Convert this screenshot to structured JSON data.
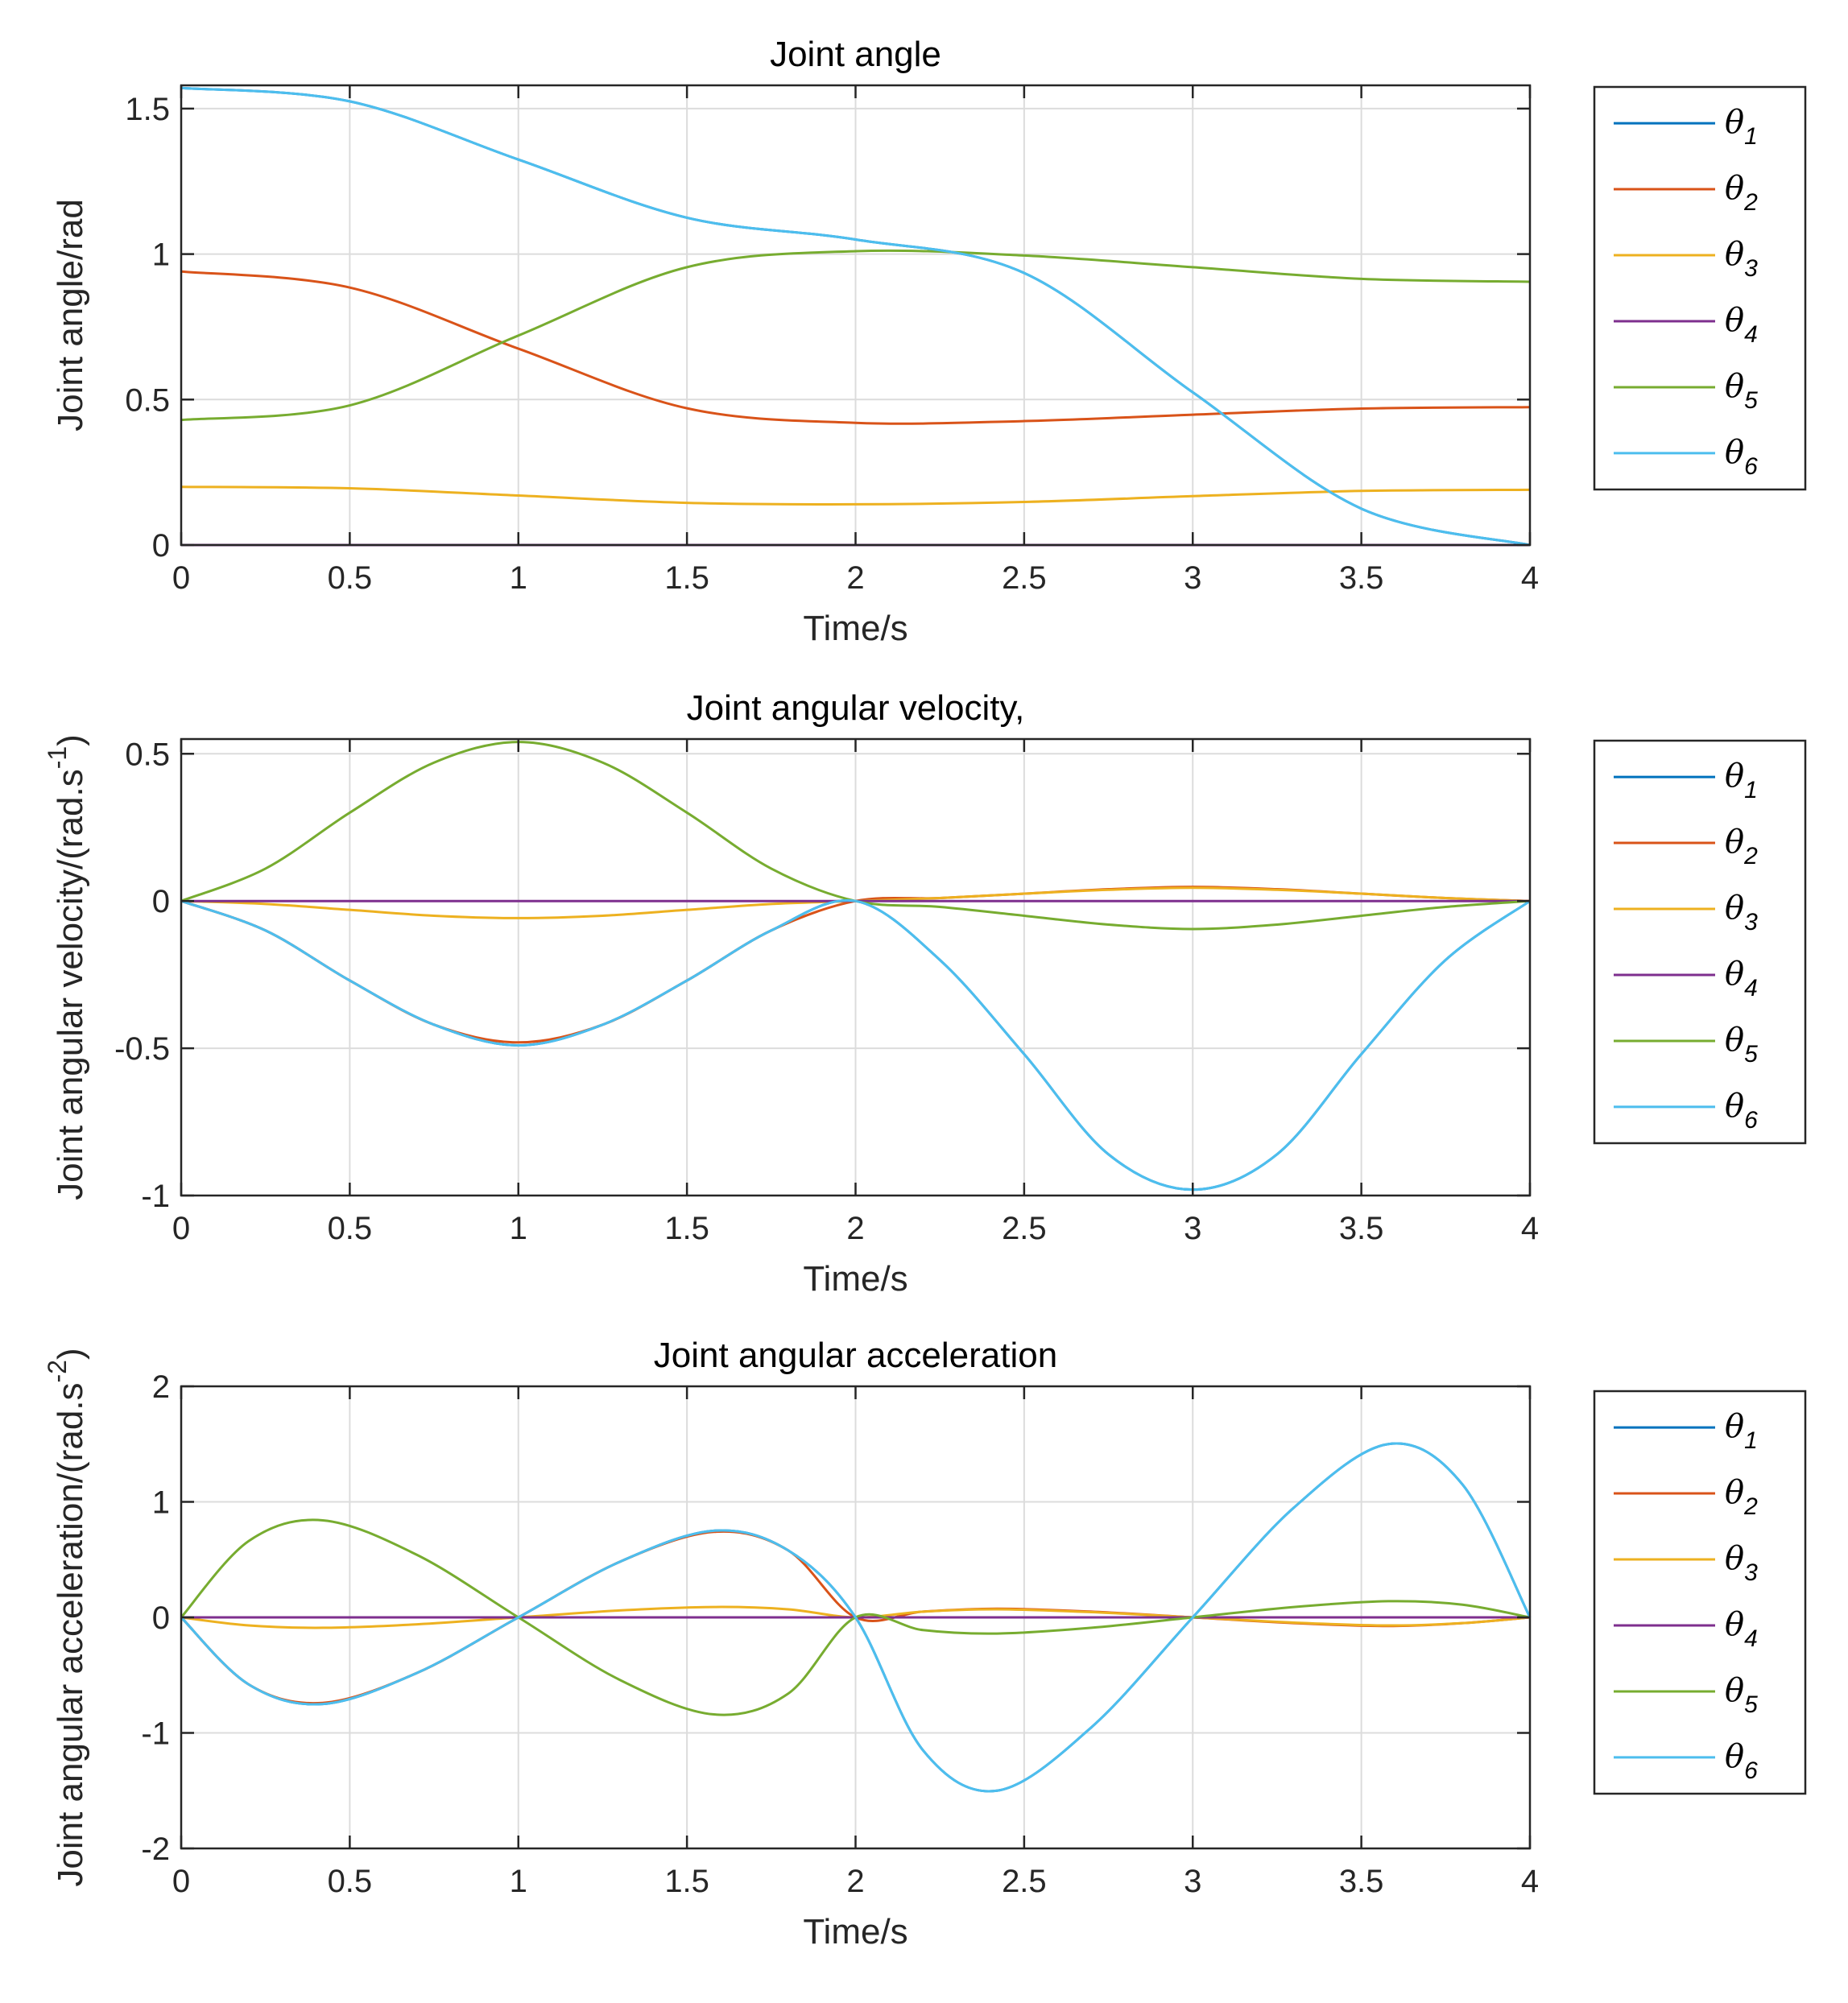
{
  "series_colors": [
    "#0072BD",
    "#D95319",
    "#EDB120",
    "#7E2F8E",
    "#77AC30",
    "#4DBEEE"
  ],
  "chart_data": [
    {
      "type": "line",
      "title": "Joint angle",
      "xlabel": "Time/s",
      "ylabel": "Joint angle/rad",
      "xlim": [
        0,
        4
      ],
      "ylim": [
        0,
        1.58
      ],
      "xticks": [
        0,
        0.5,
        1,
        1.5,
        2,
        2.5,
        3,
        3.5,
        4
      ],
      "xtick_labels": [
        "0",
        "0.5",
        "1",
        "1.5",
        "2",
        "2.5",
        "3",
        "3.5",
        "4"
      ],
      "yticks": [
        0,
        0.5,
        1,
        1.5
      ],
      "ytick_labels": [
        "0",
        "0.5",
        "1",
        "1.5"
      ],
      "grid": true,
      "legend_position": "outside-right",
      "series": [
        {
          "name": "θ1",
          "symbol": "θ",
          "sub": "1",
          "x": [
            0,
            0.5,
            1,
            1.5,
            2,
            2.5,
            3,
            3.5,
            4
          ],
          "values": [
            1.571,
            1.525,
            1.325,
            1.125,
            1.05,
            0.935,
            0.525,
            0.125,
            0.0
          ]
        },
        {
          "name": "θ2",
          "symbol": "θ",
          "sub": "2",
          "x": [
            0,
            0.5,
            1,
            1.5,
            2,
            2.5,
            3,
            3.5,
            4
          ],
          "values": [
            0.94,
            0.885,
            0.675,
            0.47,
            0.42,
            0.426,
            0.448,
            0.469,
            0.474
          ]
        },
        {
          "name": "θ3",
          "symbol": "θ",
          "sub": "3",
          "x": [
            0,
            0.5,
            1,
            1.5,
            2,
            2.5,
            3,
            3.5,
            4
          ],
          "values": [
            0.2,
            0.195,
            0.17,
            0.145,
            0.14,
            0.148,
            0.168,
            0.186,
            0.19
          ]
        },
        {
          "name": "θ4",
          "symbol": "θ",
          "sub": "4",
          "x": [
            0,
            0.5,
            1,
            1.5,
            2,
            2.5,
            3,
            3.5,
            4
          ],
          "values": [
            0,
            0,
            0,
            0,
            0,
            0,
            0,
            0,
            0
          ]
        },
        {
          "name": "θ5",
          "symbol": "θ",
          "sub": "5",
          "x": [
            0,
            0.5,
            1,
            1.5,
            2,
            2.5,
            3,
            3.5,
            4
          ],
          "values": [
            0.43,
            0.48,
            0.72,
            0.955,
            1.01,
            0.995,
            0.955,
            0.915,
            0.905
          ]
        },
        {
          "name": "θ6",
          "symbol": "θ",
          "sub": "6",
          "x": [
            0,
            0.5,
            1,
            1.5,
            2,
            2.5,
            3,
            3.5,
            4
          ],
          "values": [
            1.571,
            1.525,
            1.325,
            1.125,
            1.05,
            0.935,
            0.525,
            0.125,
            0.0
          ]
        }
      ]
    },
    {
      "type": "line",
      "title": "Joint angular velocity,",
      "xlabel": "Time/s",
      "ylabel": "Joint angular velocity/(rad.s",
      "ylabel_sup": "-1",
      "ylabel_tail": ")",
      "xlim": [
        0,
        4
      ],
      "ylim": [
        -1,
        0.55
      ],
      "xticks": [
        0,
        0.5,
        1,
        1.5,
        2,
        2.5,
        3,
        3.5,
        4
      ],
      "xtick_labels": [
        "0",
        "0.5",
        "1",
        "1.5",
        "2",
        "2.5",
        "3",
        "3.5",
        "4"
      ],
      "yticks": [
        -1,
        -0.5,
        0,
        0.5
      ],
      "ytick_labels": [
        "-1",
        "-0.5",
        "0",
        "0.5"
      ],
      "grid": true,
      "legend_position": "outside-right",
      "series": [
        {
          "name": "θ1",
          "symbol": "θ",
          "sub": "1",
          "x": [
            0,
            0.25,
            0.5,
            0.75,
            1,
            1.25,
            1.5,
            1.75,
            2,
            2.25,
            2.5,
            2.75,
            3,
            3.25,
            3.5,
            3.75,
            4
          ],
          "values": [
            0,
            -0.1,
            -0.27,
            -0.42,
            -0.49,
            -0.42,
            -0.27,
            -0.1,
            0,
            -0.2,
            -0.52,
            -0.86,
            -0.98,
            -0.86,
            -0.52,
            -0.2,
            0
          ]
        },
        {
          "name": "θ2",
          "symbol": "θ",
          "sub": "2",
          "x": [
            0,
            0.25,
            0.5,
            0.75,
            1,
            1.25,
            1.5,
            1.75,
            2,
            2.25,
            2.5,
            2.75,
            3,
            3.25,
            3.5,
            3.75,
            4
          ],
          "values": [
            0,
            -0.1,
            -0.27,
            -0.42,
            -0.48,
            -0.42,
            -0.27,
            -0.1,
            0,
            0.01,
            0.025,
            0.04,
            0.048,
            0.04,
            0.025,
            0.01,
            0
          ]
        },
        {
          "name": "θ3",
          "symbol": "θ",
          "sub": "3",
          "x": [
            0,
            0.25,
            0.5,
            0.75,
            1,
            1.25,
            1.5,
            1.75,
            2,
            2.25,
            2.5,
            2.75,
            3,
            3.25,
            3.5,
            3.75,
            4
          ],
          "values": [
            0,
            -0.01,
            -0.03,
            -0.05,
            -0.058,
            -0.05,
            -0.03,
            -0.01,
            0,
            0.01,
            0.025,
            0.038,
            0.045,
            0.038,
            0.025,
            0.01,
            0
          ]
        },
        {
          "name": "θ4",
          "symbol": "θ",
          "sub": "4",
          "x": [
            0,
            0.25,
            0.5,
            0.75,
            1,
            1.25,
            1.5,
            1.75,
            2,
            2.25,
            2.5,
            2.75,
            3,
            3.25,
            3.5,
            3.75,
            4
          ],
          "values": [
            0,
            0,
            0,
            0,
            0,
            0,
            0,
            0,
            0,
            0,
            0,
            0,
            0,
            0,
            0,
            0,
            0
          ]
        },
        {
          "name": "θ5",
          "symbol": "θ",
          "sub": "5",
          "x": [
            0,
            0.25,
            0.5,
            0.75,
            1,
            1.25,
            1.5,
            1.75,
            2,
            2.25,
            2.5,
            2.75,
            3,
            3.25,
            3.5,
            3.75,
            4
          ],
          "values": [
            0,
            0.11,
            0.3,
            0.47,
            0.54,
            0.47,
            0.3,
            0.11,
            0,
            -0.02,
            -0.05,
            -0.08,
            -0.095,
            -0.08,
            -0.05,
            -0.02,
            0
          ]
        },
        {
          "name": "θ6",
          "symbol": "θ",
          "sub": "6",
          "x": [
            0,
            0.25,
            0.5,
            0.75,
            1,
            1.25,
            1.5,
            1.75,
            2,
            2.25,
            2.5,
            2.75,
            3,
            3.25,
            3.5,
            3.75,
            4
          ],
          "values": [
            0,
            -0.1,
            -0.27,
            -0.42,
            -0.49,
            -0.42,
            -0.27,
            -0.1,
            0,
            -0.2,
            -0.52,
            -0.86,
            -0.98,
            -0.86,
            -0.52,
            -0.2,
            0
          ]
        }
      ]
    },
    {
      "type": "line",
      "title": "Joint angular acceleration",
      "xlabel": "Time/s",
      "ylabel": "Joint angular acceleration/(rad.s",
      "ylabel_sup": "-2",
      "ylabel_tail": ")",
      "xlim": [
        0,
        4
      ],
      "ylim": [
        -2,
        2
      ],
      "xticks": [
        0,
        0.5,
        1,
        1.5,
        2,
        2.5,
        3,
        3.5,
        4
      ],
      "xtick_labels": [
        "0",
        "0.5",
        "1",
        "1.5",
        "2",
        "2.5",
        "3",
        "3.5",
        "4"
      ],
      "yticks": [
        -2,
        -1,
        0,
        1,
        2
      ],
      "ytick_labels": [
        "-2",
        "-1",
        "0",
        "1",
        "2"
      ],
      "grid": true,
      "legend_position": "outside-right",
      "series": [
        {
          "name": "θ1",
          "symbol": "θ",
          "sub": "1",
          "x": [
            0,
            0.2,
            0.42,
            0.7,
            1,
            1.3,
            1.58,
            1.8,
            2,
            2.2,
            2.42,
            2.7,
            3,
            3.3,
            3.58,
            3.8,
            4
          ],
          "values": [
            0,
            -0.58,
            -0.75,
            -0.48,
            0,
            0.48,
            0.75,
            0.58,
            0,
            -1.15,
            -1.5,
            -0.95,
            0,
            0.95,
            1.5,
            1.15,
            0
          ]
        },
        {
          "name": "θ2",
          "symbol": "θ",
          "sub": "2",
          "x": [
            0,
            0.2,
            0.42,
            0.7,
            1,
            1.3,
            1.58,
            1.8,
            2,
            2.2,
            2.42,
            2.7,
            3,
            3.3,
            3.58,
            3.8,
            4
          ],
          "values": [
            0,
            -0.58,
            -0.74,
            -0.48,
            0,
            0.48,
            0.74,
            0.58,
            0,
            0.05,
            0.075,
            0.05,
            0,
            -0.05,
            -0.075,
            -0.05,
            0
          ]
        },
        {
          "name": "θ3",
          "symbol": "θ",
          "sub": "3",
          "x": [
            0,
            0.2,
            0.42,
            0.7,
            1,
            1.3,
            1.58,
            1.8,
            2,
            2.2,
            2.42,
            2.7,
            3,
            3.3,
            3.58,
            3.8,
            4
          ],
          "values": [
            0,
            -0.07,
            -0.09,
            -0.06,
            0,
            0.06,
            0.09,
            0.07,
            0,
            0.05,
            0.07,
            0.045,
            0,
            -0.045,
            -0.07,
            -0.05,
            0
          ]
        },
        {
          "name": "θ4",
          "symbol": "θ",
          "sub": "4",
          "x": [
            0,
            0.2,
            0.42,
            0.7,
            1,
            1.3,
            1.58,
            1.8,
            2,
            2.2,
            2.42,
            2.7,
            3,
            3.3,
            3.58,
            3.8,
            4
          ],
          "values": [
            0,
            0,
            0,
            0,
            0,
            0,
            0,
            0,
            0,
            0,
            0,
            0,
            0,
            0,
            0,
            0,
            0
          ]
        },
        {
          "name": "θ5",
          "symbol": "θ",
          "sub": "5",
          "x": [
            0,
            0.2,
            0.42,
            0.7,
            1,
            1.3,
            1.58,
            1.8,
            2,
            2.2,
            2.42,
            2.7,
            3,
            3.3,
            3.58,
            3.8,
            4
          ],
          "values": [
            0,
            0.66,
            0.84,
            0.54,
            0,
            -0.54,
            -0.84,
            -0.66,
            0,
            -0.11,
            -0.14,
            -0.09,
            0,
            0.09,
            0.14,
            0.11,
            0
          ]
        },
        {
          "name": "θ6",
          "symbol": "θ",
          "sub": "6",
          "x": [
            0,
            0.2,
            0.42,
            0.7,
            1,
            1.3,
            1.58,
            1.8,
            2,
            2.2,
            2.42,
            2.7,
            3,
            3.3,
            3.58,
            3.8,
            4
          ],
          "values": [
            0,
            -0.58,
            -0.75,
            -0.48,
            0,
            0.48,
            0.75,
            0.58,
            0,
            -1.15,
            -1.5,
            -0.95,
            0,
            0.95,
            1.5,
            1.15,
            0
          ]
        }
      ]
    }
  ]
}
